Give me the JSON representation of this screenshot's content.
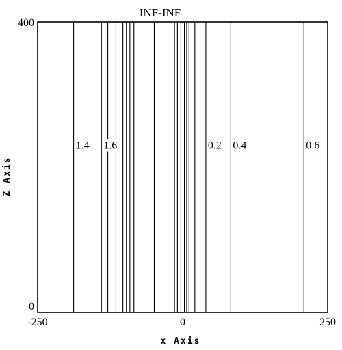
{
  "chart_data": {
    "type": "line",
    "title": "INF-INF",
    "xlabel": "x Axis",
    "ylabel": "Z Axis",
    "xlim": [
      -250,
      250
    ],
    "ylim": [
      0,
      400
    ],
    "x_ticks": [
      {
        "value": -250,
        "label": "-250"
      },
      {
        "value": 0,
        "label": "0"
      },
      {
        "value": 250,
        "label": "250"
      }
    ],
    "y_ticks": [
      {
        "value": 0,
        "label": "0"
      },
      {
        "value": 400,
        "label": "400"
      }
    ],
    "contours": [
      {
        "x": -188,
        "label": "1.4"
      },
      {
        "x": -140,
        "label": "1.6"
      },
      {
        "x": -129
      },
      {
        "x": -115
      },
      {
        "x": -103
      },
      {
        "x": -97
      },
      {
        "x": -91
      },
      {
        "x": -84
      },
      {
        "x": -49
      },
      {
        "x": -14
      },
      {
        "x": -9
      },
      {
        "x": -3
      },
      {
        "x": 3
      },
      {
        "x": 7
      },
      {
        "x": 11
      },
      {
        "x": 21
      },
      {
        "x": 40,
        "label": "0.2"
      },
      {
        "x": 83,
        "label": "0.4"
      },
      {
        "x": 209,
        "label": "0.6"
      }
    ],
    "label_z": 231,
    "grid": false
  }
}
